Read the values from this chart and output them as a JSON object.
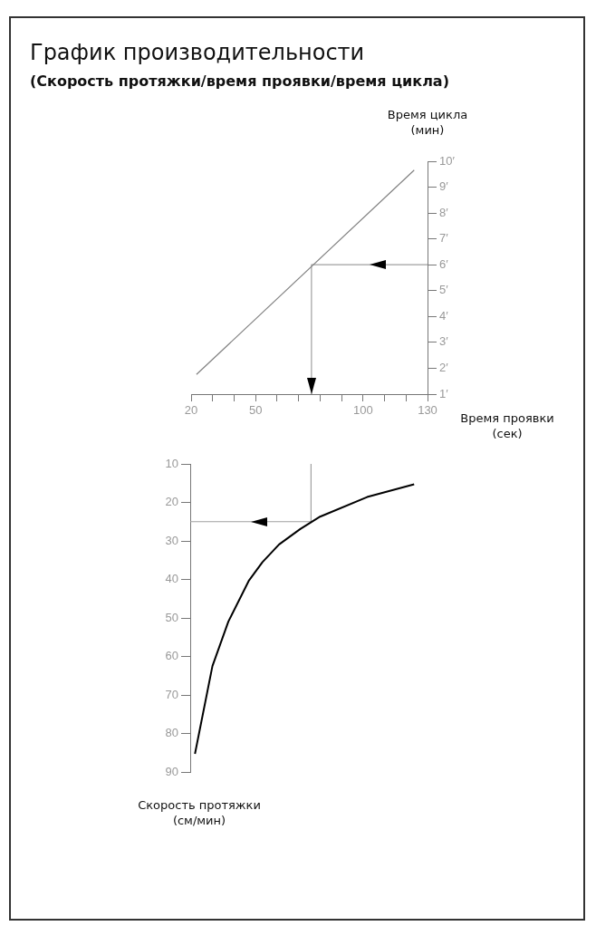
{
  "chart_data": [
    {
      "type": "line",
      "title": "График производительности",
      "subtitle": "(Скорость протяжки/время проявки/время цикла)",
      "xlabel": "Время проявки\n(сек)",
      "ylabel": "Время цикла\n(мин)",
      "xlim": [
        20,
        130
      ],
      "xticks": [
        20,
        {
          "value": 30,
          "label": null
        },
        {
          "value": 40,
          "label": null
        },
        50,
        {
          "value": 60,
          "label": null
        },
        {
          "value": 70,
          "label": null
        },
        {
          "value": 80,
          "label": null
        },
        {
          "value": 90,
          "label": null
        },
        100,
        {
          "value": 110,
          "label": null
        },
        {
          "value": 120,
          "label": null
        },
        130
      ],
      "ylim": [
        1,
        10
      ],
      "yticks": [
        {
          "value": 1,
          "label": "1′"
        },
        {
          "value": 2,
          "label": "2′"
        },
        {
          "value": 3,
          "label": "3′"
        },
        {
          "value": 4,
          "label": "4′"
        },
        {
          "value": 5,
          "label": "5′"
        },
        {
          "value": 6,
          "label": "6′"
        },
        {
          "value": 7,
          "label": "7′"
        },
        {
          "value": 8,
          "label": "8′"
        },
        {
          "value": 9,
          "label": "9′"
        },
        {
          "value": 10,
          "label": "10′"
        }
      ],
      "marker": "none",
      "series": [
        {
          "color": "#808080",
          "x": [
            22.5,
            123.8
          ],
          "values": [
            1.76,
            9.66
          ]
        },
        {
          "color": "#a0a0a0",
          "x": [
            130,
            76,
            76
          ],
          "values": [
            6,
            6,
            1
          ]
        }
      ]
    },
    {
      "type": "line",
      "ylabel": "Скорость протяжки\n(см/мин)",
      "xlim": [
        20,
        130
      ],
      "ylim": [
        90,
        10
      ],
      "yticks": [
        10,
        20,
        30,
        40,
        50,
        60,
        70,
        80,
        90
      ],
      "tick_labels": "y",
      "marker": "none",
      "series": [
        {
          "color": "#000000",
          "x": [
            22.2,
            30.3,
            37.7,
            47.1,
            53.5,
            61.2,
            71.0,
            76.7,
            80.2,
            102,
            123.8
          ],
          "values": [
            85.3,
            62.5,
            50.9,
            40.4,
            35.5,
            30.9,
            26.9,
            24.9,
            23.7,
            18.6,
            15.3
          ]
        },
        {
          "color": "#a0a0a0",
          "x": [
            76,
            76,
            20
          ],
          "values": [
            10,
            25,
            25
          ]
        }
      ]
    }
  ]
}
